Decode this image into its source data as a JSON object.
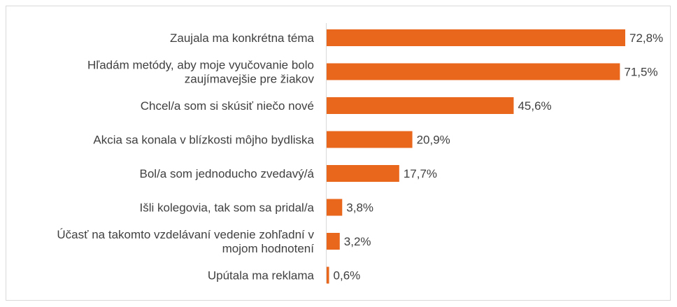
{
  "chart_data": {
    "type": "bar",
    "orientation": "horizontal",
    "title": "",
    "xlabel": "",
    "ylabel": "",
    "xlim": [
      0,
      72.8
    ],
    "grid": false,
    "legend": "none",
    "bar_color": "#e8671c",
    "categories": [
      "Zaujala ma konkrétna téma",
      "Hľadám metódy, aby moje vyučovanie bolo zaujímavejšie pre žiakov",
      "Chcel/a som si skúsiť niečo nové",
      "Akcia sa konala v blízkosti môjho bydliska",
      "Bol/a som jednoducho zvedavý/á",
      "Išli kolegovia, tak som sa pridal/a",
      "Účasť na takomto vzdelávaní vedenie zohľadní v mojom hodnotení",
      "Upútala ma reklama"
    ],
    "category_lines": [
      [
        "Zaujala ma konkrétna téma"
      ],
      [
        "Hľadám metódy, aby moje vyučovanie bolo",
        "zaujímavejšie pre žiakov"
      ],
      [
        "Chcel/a som si skúsiť niečo nové"
      ],
      [
        "Akcia sa konala v blízkosti môjho bydliska"
      ],
      [
        "Bol/a som jednoducho zvedavý/á"
      ],
      [
        "Išli kolegovia, tak som sa pridal/a"
      ],
      [
        "Účasť na takomto vzdelávaní vedenie zohľadní v",
        "mojom hodnotení"
      ],
      [
        "Upútala ma reklama"
      ]
    ],
    "values": [
      72.8,
      71.5,
      45.6,
      20.9,
      17.7,
      3.8,
      3.2,
      0.6
    ],
    "data_labels": [
      "72,8%",
      "71,5%",
      "45,6%",
      "20,9%",
      "17,7%",
      "3,8%",
      "3,2%",
      "0,6%"
    ]
  }
}
